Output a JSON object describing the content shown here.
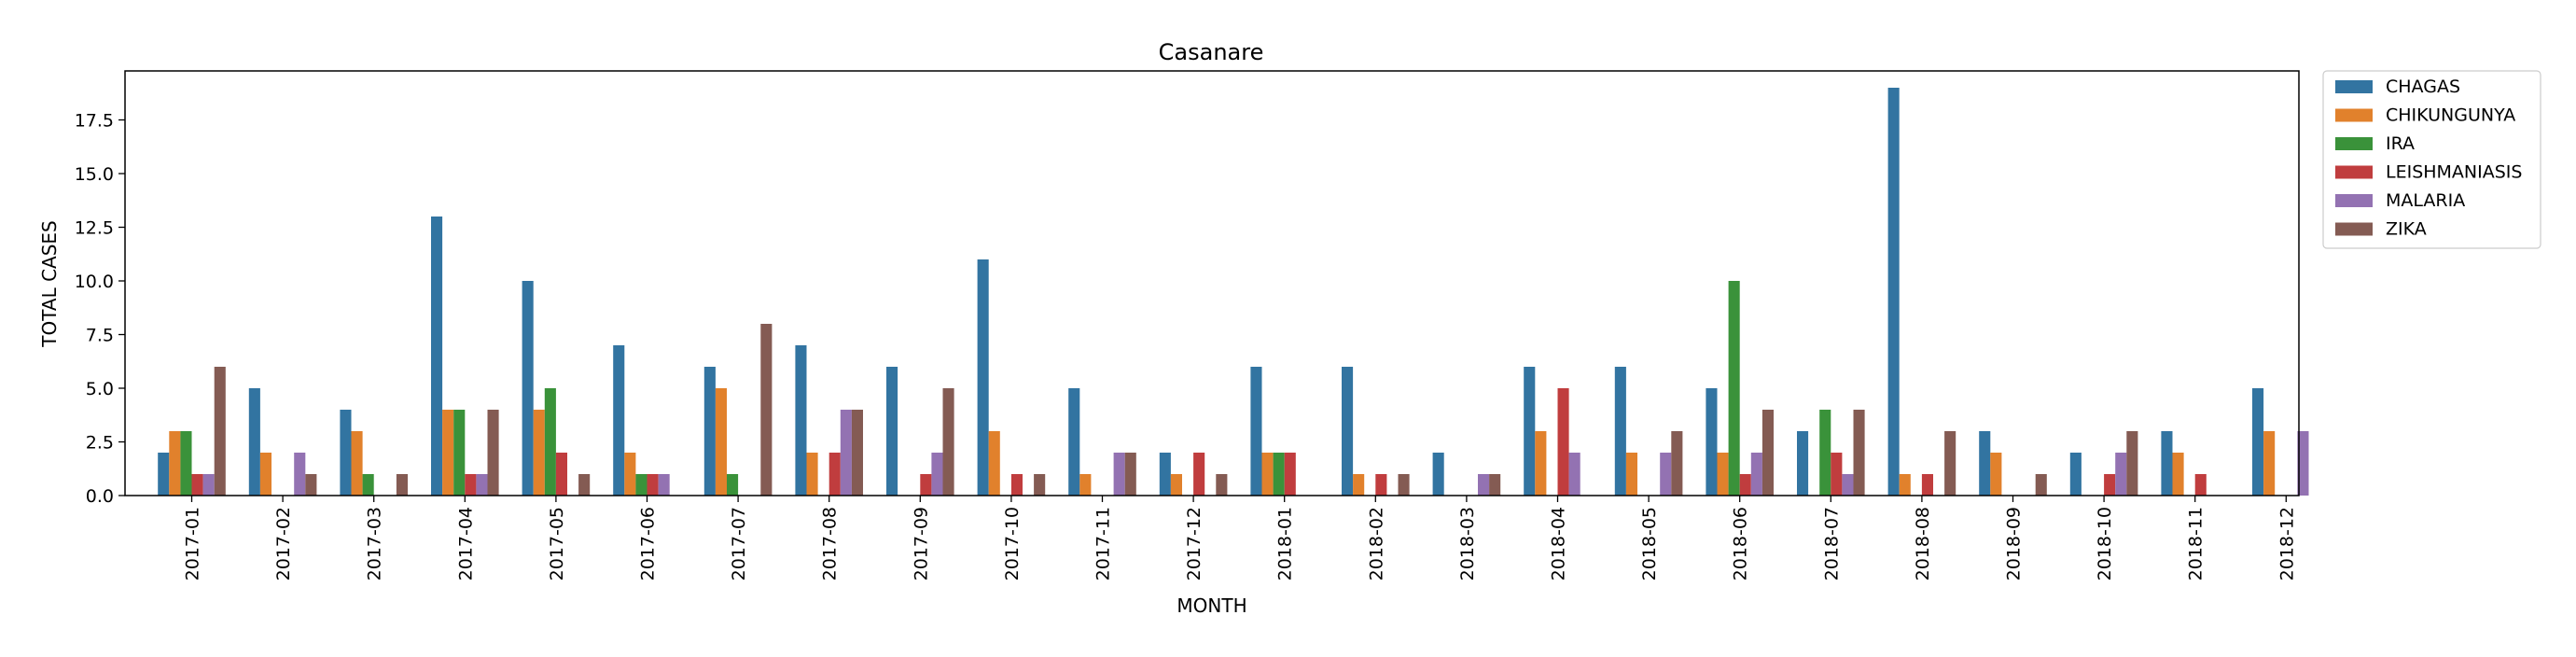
{
  "chart_data": {
    "type": "bar",
    "title": "Casanare",
    "xlabel": "MONTH",
    "ylabel": "TOTAL CASES",
    "ylim": [
      0,
      20
    ],
    "yticks": [
      "0.0",
      "2.5",
      "5.0",
      "7.5",
      "10.0",
      "12.5",
      "15.0",
      "17.5"
    ],
    "legend_position": "outside-top-right",
    "categories": [
      "2017-01",
      "2017-02",
      "2017-03",
      "2017-04",
      "2017-05",
      "2017-06",
      "2017-07",
      "2017-08",
      "2017-09",
      "2017-10",
      "2017-11",
      "2017-12",
      "2018-01",
      "2018-02",
      "2018-03",
      "2018-04",
      "2018-05",
      "2018-06",
      "2018-07",
      "2018-08",
      "2018-09",
      "2018-10",
      "2018-11",
      "2018-12"
    ],
    "series": [
      {
        "name": "CHAGAS",
        "color": "#3274a1",
        "values": [
          2,
          5,
          4,
          13,
          10,
          7,
          6,
          7,
          6,
          11,
          5,
          2,
          6,
          6,
          2,
          6,
          6,
          5,
          3,
          19,
          3,
          2,
          3,
          5
        ]
      },
      {
        "name": "CHIKUNGUNYA",
        "color": "#e1812c",
        "values": [
          3,
          2,
          3,
          4,
          4,
          2,
          5,
          2,
          0,
          3,
          1,
          1,
          2,
          1,
          0,
          3,
          2,
          2,
          0,
          1,
          2,
          0,
          2,
          3
        ]
      },
      {
        "name": "IRA",
        "color": "#3a923a",
        "values": [
          3,
          0,
          1,
          4,
          5,
          1,
          1,
          0,
          0,
          0,
          0,
          0,
          2,
          0,
          0,
          0,
          0,
          10,
          4,
          0,
          0,
          0,
          0,
          0
        ]
      },
      {
        "name": "LEISHMANIASIS",
        "color": "#c03d3e",
        "values": [
          1,
          0,
          0,
          1,
          2,
          1,
          0,
          2,
          1,
          1,
          0,
          2,
          2,
          1,
          0,
          5,
          0,
          1,
          2,
          1,
          0,
          1,
          1,
          0
        ]
      },
      {
        "name": "MALARIA",
        "color": "#9372b2",
        "values": [
          1,
          2,
          0,
          1,
          0,
          1,
          0,
          4,
          2,
          0,
          2,
          0,
          0,
          0,
          1,
          2,
          2,
          2,
          1,
          0,
          0,
          2,
          0,
          3
        ]
      },
      {
        "name": "ZIKA",
        "color": "#845b53",
        "values": [
          6,
          1,
          1,
          4,
          1,
          0,
          8,
          4,
          5,
          1,
          2,
          1,
          0,
          1,
          1,
          0,
          3,
          4,
          4,
          3,
          1,
          3,
          0,
          0
        ]
      }
    ]
  }
}
